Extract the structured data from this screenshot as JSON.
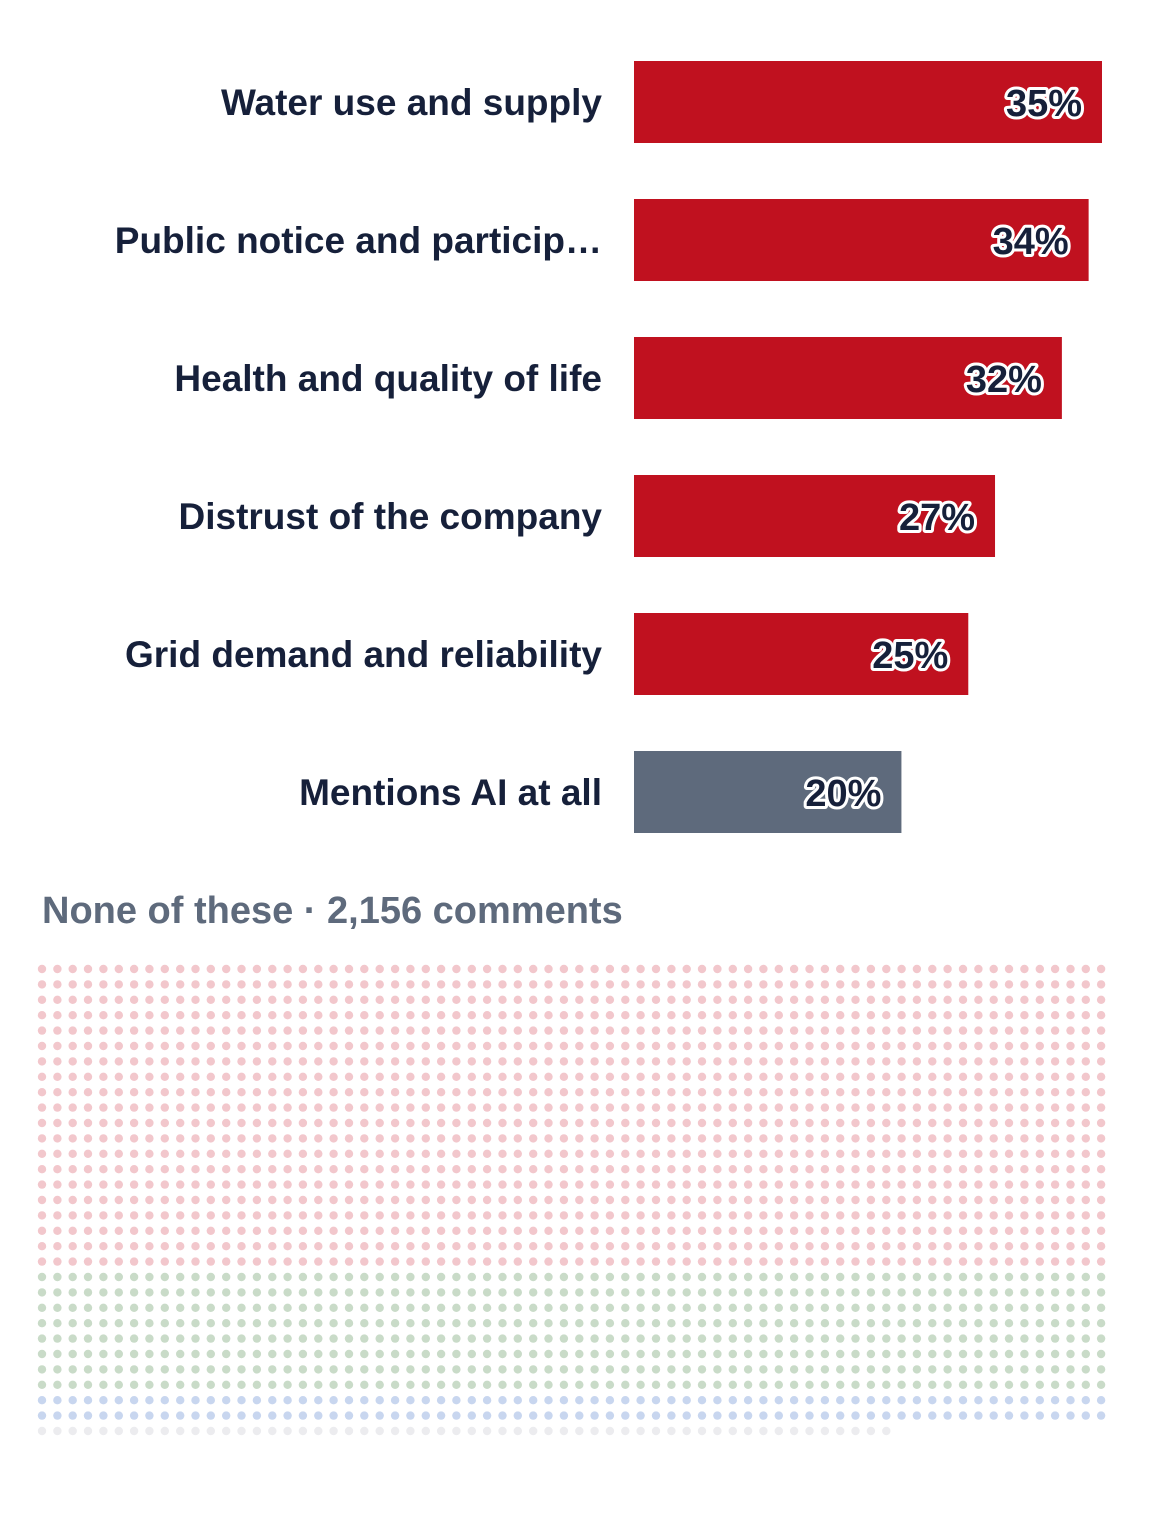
{
  "chart_data": {
    "type": "bar",
    "orientation": "horizontal",
    "categories": [
      "Water use and supply",
      "Public notice and particip…",
      "Health and quality of life",
      "Distrust of the company",
      "Grid demand and reliability",
      "Mentions AI at all"
    ],
    "values": [
      35,
      34,
      32,
      27,
      25,
      20
    ],
    "value_labels": [
      "35%",
      "34%",
      "32%",
      "27%",
      "25%",
      "20%"
    ],
    "value_unit": "%",
    "xlim": [
      0,
      35
    ],
    "grid": false,
    "legend": "none",
    "colors": {
      "bar": "#c0111f",
      "bar_highlight": "#5e6a7c",
      "label": "#16203a",
      "value_label": "#16203a"
    },
    "highlight_category": "Mentions AI at all"
  },
  "none_group": {
    "label": "None of these · 2,156 comments",
    "count": 2156,
    "color": "#5e6a7c",
    "dot_colors": [
      "#f2c7cc",
      "#c9dbc8",
      "#c8d6ef",
      "#ececef"
    ]
  }
}
